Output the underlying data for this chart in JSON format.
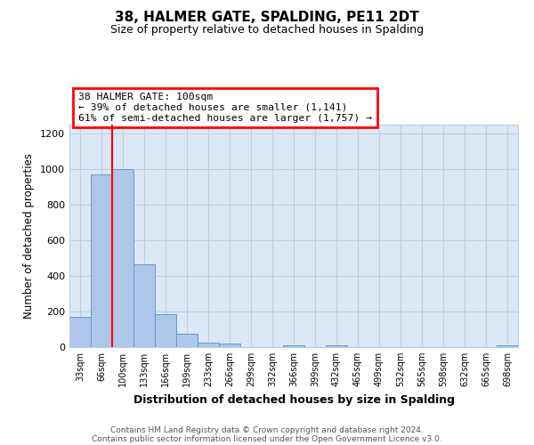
{
  "title": "38, HALMER GATE, SPALDING, PE11 2DT",
  "subtitle": "Size of property relative to detached houses in Spalding",
  "xlabel": "Distribution of detached houses by size in Spalding",
  "ylabel": "Number of detached properties",
  "bin_labels": [
    "33sqm",
    "66sqm",
    "100sqm",
    "133sqm",
    "166sqm",
    "199sqm",
    "233sqm",
    "266sqm",
    "299sqm",
    "332sqm",
    "366sqm",
    "399sqm",
    "432sqm",
    "465sqm",
    "499sqm",
    "532sqm",
    "565sqm",
    "598sqm",
    "632sqm",
    "665sqm",
    "698sqm"
  ],
  "bar_values": [
    170,
    970,
    1000,
    465,
    185,
    75,
    25,
    18,
    0,
    0,
    12,
    0,
    10,
    0,
    0,
    0,
    0,
    0,
    0,
    0,
    10
  ],
  "bar_color": "#aec6e8",
  "bar_edge_color": "#5b9bd5",
  "vline_x": 2,
  "vline_color": "red",
  "ylim": [
    0,
    1250
  ],
  "yticks": [
    0,
    200,
    400,
    600,
    800,
    1000,
    1200
  ],
  "annotation_title": "38 HALMER GATE: 100sqm",
  "annotation_line1": "← 39% of detached houses are smaller (1,141)",
  "annotation_line2": "61% of semi-detached houses are larger (1,757) →",
  "annotation_box_color": "red",
  "footer_line1": "Contains HM Land Registry data © Crown copyright and database right 2024.",
  "footer_line2": "Contains public sector information licensed under the Open Government Licence v3.0.",
  "plot_bg_color": "#dce8f5",
  "fig_bg_color": "#ffffff",
  "grid_color": "#b8cfe8"
}
